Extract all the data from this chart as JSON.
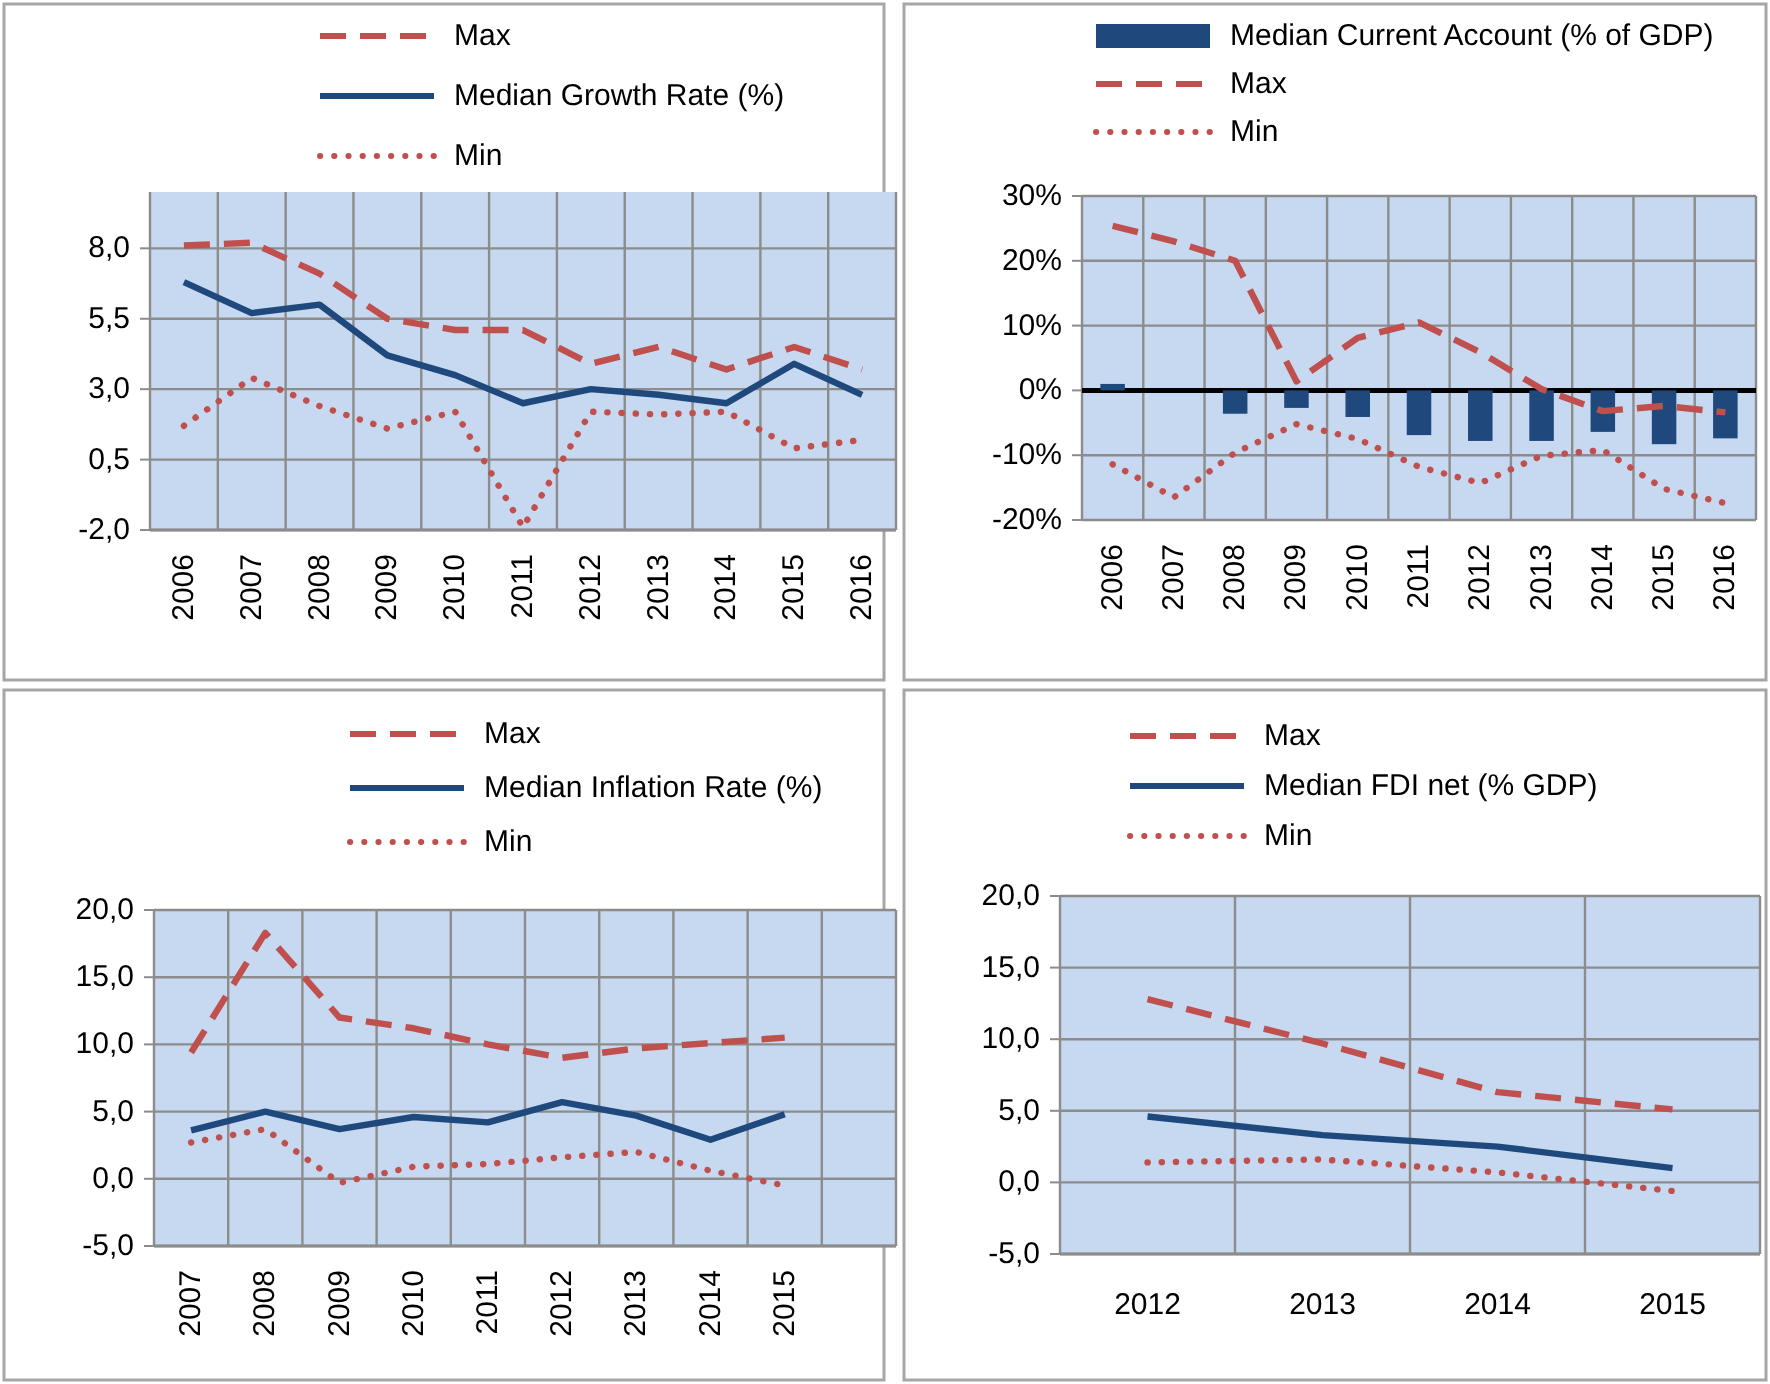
{
  "chart_data": [
    {
      "type": "line",
      "categories": [
        "2006",
        "2007",
        "2008",
        "2009",
        "2010",
        "2011",
        "2012",
        "2013",
        "2014",
        "2015",
        "2016"
      ],
      "ylim": [
        -2,
        10
      ],
      "yticks": [
        {
          "value": -2,
          "label": "-2,0"
        },
        {
          "value": 0.5,
          "label": "0,5"
        },
        {
          "value": 3,
          "label": "3,0"
        },
        {
          "value": 5.5,
          "label": "5,5"
        },
        {
          "value": 8,
          "label": "8,0"
        }
      ],
      "grid": true,
      "legend": "top",
      "series": [
        {
          "name": "Max",
          "color": "#c0504d",
          "line_style": "dashed",
          "values": [
            8.1,
            8.2,
            7.1,
            5.5,
            5.1,
            5.1,
            3.9,
            4.5,
            3.7,
            4.5,
            3.7
          ]
        },
        {
          "name": "Median Growth Rate (%)",
          "color": "#1f497d",
          "line_style": "solid",
          "values": [
            6.8,
            5.7,
            6.0,
            4.2,
            3.5,
            2.5,
            3.0,
            2.8,
            2.5,
            3.9,
            2.8
          ]
        },
        {
          "name": "Min",
          "color": "#c0504d",
          "line_style": "dotted",
          "values": [
            1.7,
            3.4,
            2.4,
            1.6,
            2.2,
            -1.9,
            2.2,
            2.1,
            2.2,
            0.9,
            1.2
          ]
        }
      ]
    },
    {
      "type": "line",
      "categories": [
        "2006",
        "2007",
        "2008",
        "2009",
        "2010",
        "2011",
        "2012",
        "2013",
        "2014",
        "2015",
        "2016"
      ],
      "ylim": [
        -20,
        30
      ],
      "yticks": [
        {
          "value": -20,
          "label": "-20%"
        },
        {
          "value": -10,
          "label": "-10%"
        },
        {
          "value": 0,
          "label": "0%"
        },
        {
          "value": 10,
          "label": "10%"
        },
        {
          "value": 20,
          "label": "20%"
        },
        {
          "value": 30,
          "label": "30%"
        }
      ],
      "grid": true,
      "legend": "top",
      "series": [
        {
          "name": "Median Current Account (% of GDP)",
          "type": "bar",
          "color": "#1f497d",
          "values": [
            1,
            0,
            -3.6,
            -2.7,
            -4.1,
            -6.9,
            -7.8,
            -7.8,
            -6.4,
            -8.3,
            -7.4
          ]
        },
        {
          "name": "Max",
          "color": "#c0504d",
          "line_style": "dashed",
          "values": [
            25.4,
            23,
            20,
            1.4,
            8.1,
            10.5,
            5.9,
            0.2,
            -3.2,
            -2.4,
            -3.4
          ]
        },
        {
          "name": "Min",
          "color": "#c0504d",
          "line_style": "dotted",
          "values": [
            -11.4,
            -16.5,
            -9.6,
            -5.2,
            -7.5,
            -11.8,
            -14.3,
            -10.1,
            -9.2,
            -15.2,
            -17.4
          ]
        }
      ]
    },
    {
      "type": "line",
      "categories": [
        "2007",
        "2008",
        "2009",
        "2010",
        "2011",
        "2012",
        "2013",
        "2014",
        "2015",
        null
      ],
      "ylim": [
        -5,
        20
      ],
      "yticks": [
        {
          "value": -5,
          "label": "-5,0"
        },
        {
          "value": 0,
          "label": "0,0"
        },
        {
          "value": 5,
          "label": "5,0"
        },
        {
          "value": 10,
          "label": "10,0"
        },
        {
          "value": 15,
          "label": "15,0"
        },
        {
          "value": 20,
          "label": "20,0"
        }
      ],
      "grid": true,
      "legend": "top",
      "series": [
        {
          "name": "Max",
          "color": "#c0504d",
          "line_style": "dashed",
          "values": [
            9.4,
            18.3,
            12.0,
            11.2,
            10.0,
            9.0,
            9.7,
            10.1,
            10.5,
            null
          ]
        },
        {
          "name": "Median Inflation Rate (%)",
          "color": "#1f497d",
          "line_style": "solid",
          "values": [
            3.6,
            5.0,
            3.7,
            4.6,
            4.2,
            5.7,
            4.7,
            2.9,
            4.8,
            null
          ]
        },
        {
          "name": "Min",
          "color": "#c0504d",
          "line_style": "dotted",
          "values": [
            2.7,
            3.7,
            -0.3,
            0.9,
            1.1,
            1.6,
            2.0,
            0.6,
            -0.5,
            null
          ]
        }
      ]
    },
    {
      "type": "line",
      "categories": [
        "2012",
        "2013",
        "2014",
        "2015"
      ],
      "ylim": [
        -5,
        20
      ],
      "yticks": [
        {
          "value": -5,
          "label": "-5,0"
        },
        {
          "value": 0,
          "label": "0,0"
        },
        {
          "value": 5,
          "label": "5,0"
        },
        {
          "value": 10,
          "label": "10,0"
        },
        {
          "value": 15,
          "label": "15,0"
        },
        {
          "value": 20,
          "label": "20,0"
        }
      ],
      "grid": true,
      "legend": "top",
      "series": [
        {
          "name": "Max",
          "color": "#c0504d",
          "line_style": "dashed",
          "values": [
            12.8,
            9.7,
            6.3,
            5.1
          ]
        },
        {
          "name": "Median FDI net (% GDP)",
          "color": "#1f497d",
          "line_style": "solid",
          "values": [
            4.6,
            3.3,
            2.5,
            1.0
          ]
        },
        {
          "name": "Min",
          "color": "#c0504d",
          "line_style": "dotted",
          "values": [
            1.4,
            1.6,
            0.7,
            -0.6
          ]
        }
      ]
    }
  ]
}
